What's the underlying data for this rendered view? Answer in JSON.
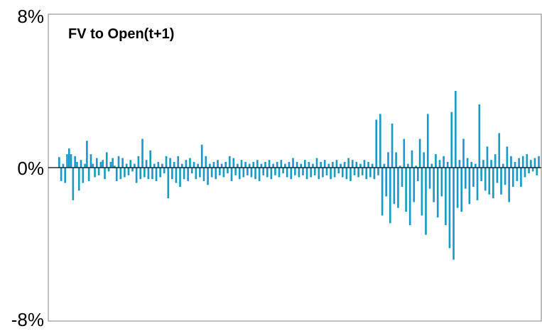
{
  "chart_data": {
    "type": "bar",
    "title": "FV to Open(t+1)",
    "xlabel": "",
    "ylabel": "",
    "ylim": [
      -0.08,
      0.08
    ],
    "y_ticks": [
      "8%",
      "0%",
      "-8%"
    ],
    "y_tick_values": [
      0.08,
      0,
      -0.08
    ],
    "grid": false,
    "legend": "none",
    "bar_color": "#1a9bc7",
    "series": [
      {
        "values": [
          0.0055,
          -0.007,
          0.002,
          -0.008,
          0.007,
          0.01,
          0.007,
          -0.017,
          0.006,
          0.003,
          -0.012,
          0.004,
          -0.008,
          0.002,
          0.014,
          -0.007,
          0.007,
          0.002,
          -0.005,
          0.005,
          -0.004,
          0.003,
          0.004,
          -0.006,
          0.008,
          -0.002,
          0.003,
          0.005,
          0.001,
          -0.007,
          0.006,
          -0.006,
          0.005,
          -0.005,
          0.002,
          -0.004,
          0.004,
          -0.002,
          0.002,
          -0.008,
          0.006,
          -0.006,
          0.015,
          -0.005,
          0.004,
          -0.006,
          0.009,
          -0.006,
          0.002,
          -0.007,
          0.003,
          -0.005,
          0.002,
          -0.003,
          0.006,
          -0.016,
          0.005,
          -0.006,
          0.003,
          -0.008,
          0.006,
          -0.01,
          0.002,
          -0.006,
          0.004,
          -0.007,
          0.005,
          -0.003,
          0.003,
          -0.006,
          0.002,
          -0.005,
          0.012,
          -0.007,
          0.006,
          -0.009,
          0.002,
          -0.005,
          0.003,
          -0.006,
          0.004,
          -0.004,
          0.002,
          -0.005,
          0.003,
          -0.003,
          0.006,
          -0.007,
          0.005,
          -0.004,
          0.002,
          -0.006,
          0.004,
          -0.005,
          0.003,
          -0.004,
          0.002,
          -0.005,
          0.003,
          -0.006,
          0.004,
          -0.007,
          0.002,
          -0.004,
          0.003,
          -0.005,
          0.004,
          -0.006,
          0.002,
          -0.004,
          0.003,
          -0.005,
          0.004,
          -0.003,
          0.002,
          -0.005,
          0.003,
          -0.006,
          0.005,
          -0.004,
          0.003,
          -0.005,
          0.002,
          -0.004,
          0.004,
          -0.006,
          0.003,
          -0.005,
          0.002,
          -0.004,
          0.005,
          -0.006,
          0.003,
          -0.005,
          0.004,
          -0.004,
          0.002,
          -0.006,
          0.003,
          -0.005,
          0.004,
          -0.003,
          0.002,
          -0.005,
          0.003,
          -0.006,
          0.005,
          -0.007,
          0.004,
          -0.004,
          0.003,
          -0.005,
          0.002,
          -0.004,
          0.004,
          -0.006,
          0.003,
          -0.005,
          0.002,
          -0.006,
          0.025,
          -0.004,
          0.028,
          -0.025,
          0.002,
          -0.015,
          0.008,
          -0.029,
          0.023,
          -0.019,
          0.008,
          -0.021,
          0.001,
          -0.01,
          0.015,
          -0.023,
          0.002,
          -0.03,
          0.009,
          -0.018,
          0.001,
          -0.007,
          0.015,
          -0.025,
          0.008,
          -0.035,
          0.028,
          -0.011,
          0.002,
          -0.018,
          0.007,
          -0.026,
          0.004,
          -0.015,
          0.006,
          -0.03,
          0.003,
          -0.042,
          0.029,
          -0.048,
          0.04,
          -0.021,
          0.004,
          -0.023,
          0.015,
          -0.011,
          0.005,
          -0.019,
          0.003,
          -0.01,
          0.002,
          -0.017,
          0.033,
          -0.007,
          0.004,
          -0.012,
          0.011,
          -0.014,
          0.004,
          -0.016,
          0.007,
          -0.008,
          0.018,
          -0.014,
          0.002,
          -0.009,
          0.011,
          -0.018,
          0.006,
          -0.01,
          0.003,
          -0.007,
          0.005,
          -0.01,
          0.006,
          -0.005,
          0.007,
          -0.003,
          0.004,
          -0.002,
          0.005,
          -0.004,
          0.006
        ]
      }
    ]
  }
}
